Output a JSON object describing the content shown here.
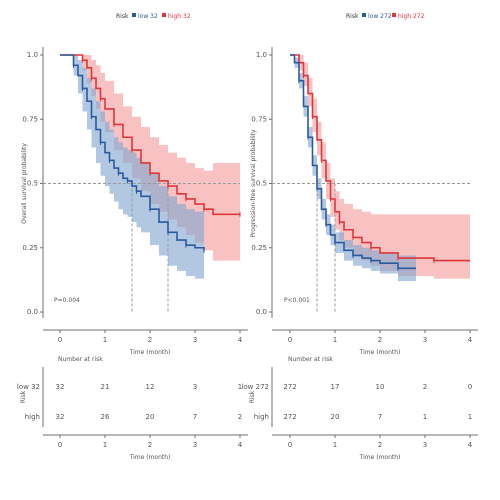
{
  "colors": {
    "low": "#2a5a9e",
    "high": "#e0363a",
    "low_band": "#7ea3cf",
    "high_band": "#f39a9a",
    "median": "#9a9a9a"
  },
  "chart_data": [
    {
      "type": "line",
      "legend": {
        "title": "Risk",
        "entries": [
          "low 32",
          "high 32"
        ]
      },
      "ylabel": "Overall survival probability",
      "xlabel": "Time (month)",
      "xlim": [
        0,
        4
      ],
      "ylim": [
        0,
        1
      ],
      "xticks": [
        "0",
        "1",
        "2",
        "3",
        "4"
      ],
      "yticks": [
        "0.0",
        "0.25",
        "0.5",
        "0.75",
        "1.0"
      ],
      "pvalue": "P=0.004",
      "median_x": [
        1.6,
        2.4
      ],
      "series": [
        {
          "name": "low",
          "x": [
            0,
            0.2,
            0.3,
            0.4,
            0.5,
            0.6,
            0.7,
            0.8,
            0.9,
            1.0,
            1.1,
            1.2,
            1.3,
            1.4,
            1.5,
            1.6,
            1.7,
            1.8,
            2.0,
            2.2,
            2.4,
            2.6,
            2.8,
            3.0,
            3.2
          ],
          "y": [
            1.0,
            1.0,
            0.96,
            0.92,
            0.87,
            0.82,
            0.76,
            0.71,
            0.66,
            0.62,
            0.59,
            0.56,
            0.54,
            0.52,
            0.51,
            0.49,
            0.47,
            0.45,
            0.4,
            0.35,
            0.31,
            0.28,
            0.26,
            0.25,
            0.24
          ],
          "lower": [
            1.0,
            1.0,
            0.92,
            0.85,
            0.78,
            0.71,
            0.64,
            0.58,
            0.53,
            0.49,
            0.46,
            0.43,
            0.4,
            0.38,
            0.37,
            0.35,
            0.33,
            0.31,
            0.26,
            0.22,
            0.18,
            0.16,
            0.14,
            0.13,
            0.12
          ],
          "upper": [
            1.0,
            1.0,
            1.0,
            0.98,
            0.95,
            0.91,
            0.87,
            0.82,
            0.78,
            0.74,
            0.71,
            0.68,
            0.66,
            0.64,
            0.63,
            0.62,
            0.6,
            0.58,
            0.54,
            0.49,
            0.45,
            0.42,
            0.4,
            0.39,
            0.38
          ]
        },
        {
          "name": "high",
          "x": [
            0,
            0.3,
            0.5,
            0.6,
            0.7,
            0.8,
            0.9,
            1.0,
            1.2,
            1.4,
            1.6,
            1.8,
            2.0,
            2.2,
            2.4,
            2.6,
            2.8,
            3.0,
            3.2,
            3.4,
            4.0
          ],
          "y": [
            1.0,
            1.0,
            0.98,
            0.95,
            0.91,
            0.87,
            0.83,
            0.79,
            0.73,
            0.68,
            0.63,
            0.58,
            0.54,
            0.51,
            0.49,
            0.46,
            0.44,
            0.42,
            0.4,
            0.38,
            0.38
          ],
          "lower": [
            1.0,
            1.0,
            0.94,
            0.89,
            0.84,
            0.79,
            0.74,
            0.7,
            0.63,
            0.58,
            0.52,
            0.47,
            0.42,
            0.39,
            0.36,
            0.33,
            0.3,
            0.27,
            0.24,
            0.2,
            0.2
          ],
          "upper": [
            1.0,
            1.0,
            1.0,
            1.0,
            0.98,
            0.96,
            0.93,
            0.9,
            0.85,
            0.8,
            0.76,
            0.72,
            0.68,
            0.65,
            0.62,
            0.6,
            0.58,
            0.56,
            0.55,
            0.58,
            0.58
          ]
        }
      ],
      "risk_table": {
        "title": "Number at risk",
        "ylabel": "Risk",
        "xticks": [
          "0",
          "1",
          "2",
          "3",
          "4"
        ],
        "xlabel": "Time (month)",
        "rows": [
          {
            "name": "low 32",
            "values": [
              "32",
              "21",
              "12",
              "3",
              "1"
            ]
          },
          {
            "name": "high",
            "values": [
              "32",
              "26",
              "20",
              "7",
              "2"
            ]
          }
        ]
      }
    },
    {
      "type": "line",
      "legend": {
        "title": "Risk",
        "entries": [
          "low 272",
          "high 272"
        ]
      },
      "ylabel": "Progression-free survival probability",
      "xlabel": "Time (month)",
      "xlim": [
        0,
        4
      ],
      "ylim": [
        0,
        1
      ],
      "xticks": [
        "0",
        "1",
        "2",
        "3",
        "4"
      ],
      "yticks": [
        "0.0",
        "0.25",
        "0.5",
        "0.75",
        "1.0"
      ],
      "pvalue": "P<0.001",
      "median_x": [
        0.6,
        1.0
      ],
      "series": [
        {
          "name": "low",
          "x": [
            0,
            0.1,
            0.2,
            0.3,
            0.4,
            0.5,
            0.6,
            0.7,
            0.8,
            0.9,
            1.0,
            1.2,
            1.4,
            1.6,
            1.8,
            2.0,
            2.4,
            2.8
          ],
          "y": [
            1.0,
            0.97,
            0.9,
            0.8,
            0.68,
            0.57,
            0.48,
            0.4,
            0.34,
            0.3,
            0.27,
            0.24,
            0.22,
            0.21,
            0.2,
            0.19,
            0.17,
            0.17
          ],
          "lower": [
            1.0,
            0.95,
            0.87,
            0.76,
            0.64,
            0.53,
            0.44,
            0.36,
            0.3,
            0.26,
            0.23,
            0.2,
            0.18,
            0.17,
            0.16,
            0.15,
            0.12,
            0.12
          ],
          "upper": [
            1.0,
            0.99,
            0.93,
            0.84,
            0.72,
            0.61,
            0.52,
            0.44,
            0.38,
            0.34,
            0.31,
            0.28,
            0.26,
            0.25,
            0.24,
            0.23,
            0.22,
            0.22
          ]
        },
        {
          "name": "high",
          "x": [
            0,
            0.2,
            0.3,
            0.4,
            0.5,
            0.6,
            0.7,
            0.8,
            0.9,
            1.0,
            1.1,
            1.2,
            1.4,
            1.6,
            1.8,
            2.0,
            2.4,
            2.8,
            3.2,
            4.0
          ],
          "y": [
            1.0,
            0.97,
            0.92,
            0.85,
            0.76,
            0.67,
            0.59,
            0.51,
            0.44,
            0.39,
            0.35,
            0.32,
            0.29,
            0.27,
            0.25,
            0.23,
            0.21,
            0.21,
            0.2,
            0.2
          ],
          "lower": [
            1.0,
            0.94,
            0.88,
            0.8,
            0.7,
            0.61,
            0.52,
            0.44,
            0.37,
            0.32,
            0.28,
            0.25,
            0.22,
            0.2,
            0.18,
            0.16,
            0.14,
            0.14,
            0.13,
            0.13
          ],
          "upper": [
            1.0,
            1.0,
            0.97,
            0.91,
            0.83,
            0.74,
            0.66,
            0.58,
            0.52,
            0.47,
            0.44,
            0.42,
            0.4,
            0.39,
            0.38,
            0.38,
            0.38,
            0.38,
            0.38,
            0.38
          ]
        }
      ],
      "risk_table": {
        "title": "Number at risk",
        "ylabel": "Risk",
        "xticks": [
          "0",
          "1",
          "2",
          "3",
          "4"
        ],
        "xlabel": "Time (month)",
        "rows": [
          {
            "name": "low 272",
            "values": [
              "272",
              "17",
              "10",
              "2",
              "0"
            ]
          },
          {
            "name": "high",
            "values": [
              "272",
              "20",
              "7",
              "1",
              "1"
            ]
          }
        ]
      }
    }
  ]
}
